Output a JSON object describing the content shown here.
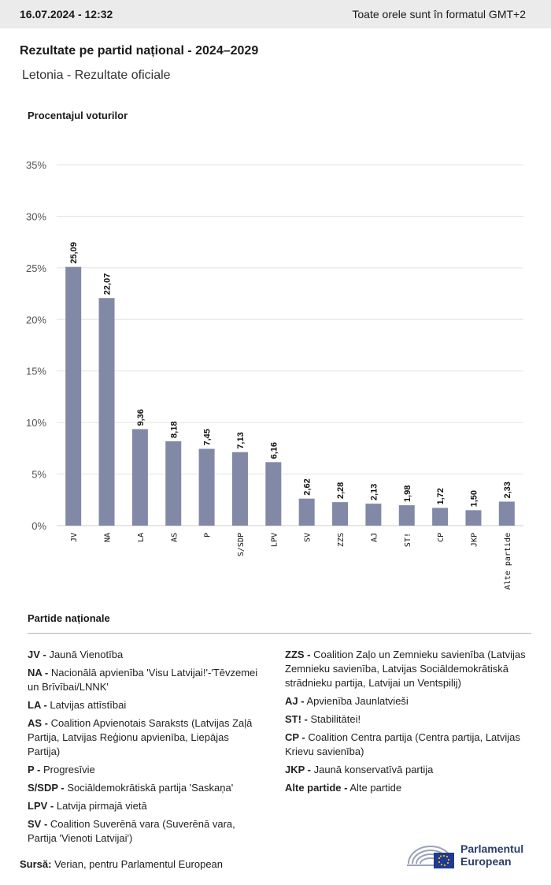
{
  "header": {
    "timestamp": "16.07.2024 - 12:32",
    "timezone_note": "Toate orele sunt în formatul GMT+2"
  },
  "title": "Rezultate pe partid național - 2024–2029",
  "subtitle": "Letonia - Rezultate oficiale",
  "colors": {
    "bar": "#8289a6",
    "grid": "#e3e3e3"
  },
  "chart_data": {
    "type": "bar",
    "ylabel": "Procentajul voturilor",
    "ylim": [
      0,
      35
    ],
    "yticks": [
      0,
      5,
      10,
      15,
      20,
      25,
      30,
      35
    ],
    "ytick_labels": [
      "0%",
      "5%",
      "10%",
      "15%",
      "20%",
      "25%",
      "30%",
      "35%"
    ],
    "categories": [
      "JV",
      "NA",
      "LA",
      "AS",
      "P",
      "S/SDP",
      "LPV",
      "SV",
      "ZZS",
      "AJ",
      "ST!",
      "CP",
      "JKP",
      "Alte partide"
    ],
    "values": [
      25.09,
      22.07,
      9.36,
      8.18,
      7.45,
      7.13,
      6.16,
      2.62,
      2.28,
      2.13,
      1.98,
      1.72,
      1.5,
      2.33
    ],
    "value_labels": [
      "25,09",
      "22,07",
      "9,36",
      "8,18",
      "7,45",
      "7,13",
      "6,16",
      "2,62",
      "2,28",
      "2,13",
      "1,98",
      "1,72",
      "1,50",
      "2,33"
    ],
    "grid": true
  },
  "legend": {
    "title": "Partide naționale",
    "left": [
      {
        "abbr": "JV -",
        "name": "Jaunā Vienotība"
      },
      {
        "abbr": "NA -",
        "name": "Nacionālā apvienība 'Visu Latvijai!'-'Tēvzemei un Brīvībai/LNNK'"
      },
      {
        "abbr": "LA -",
        "name": "Latvijas attīstībai"
      },
      {
        "abbr": "AS -",
        "name": "Coalition Apvienotais Saraksts (Latvijas Zaļā Partija, Latvijas Reģionu apvienība, Liepājas Partija)"
      },
      {
        "abbr": "P -",
        "name": "Progresīvie"
      },
      {
        "abbr": "S/SDP -",
        "name": "Sociāldemokrātiskā partija 'Saskaņa'"
      },
      {
        "abbr": "LPV -",
        "name": "Latvija pirmajā vietā"
      },
      {
        "abbr": "SV -",
        "name": "Coalition Suverēnā vara (Suverēnā vara, Partija 'Vienoti Latvijai')"
      }
    ],
    "right": [
      {
        "abbr": "ZZS -",
        "name": "Coalition Zaļo un Zemnieku savienība (Latvijas Zemnieku savienība, Latvijas Sociāldemokrātiskā strādnieku partija, Latvijai un Ventspilij)"
      },
      {
        "abbr": "AJ -",
        "name": "Apvienība Jaunlatvieši"
      },
      {
        "abbr": "ST! -",
        "name": "Stabilitātei!"
      },
      {
        "abbr": "CP -",
        "name": "Coalition Centra partija (Centra partija, Latvijas Krievu savienība)"
      },
      {
        "abbr": "JKP -",
        "name": "Jaunā konservatīvā partija"
      },
      {
        "abbr": "Alte partide -",
        "name": "Alte partide"
      }
    ]
  },
  "source": {
    "label": "Sursă:",
    "text": "Verian, pentru Parlamentul European"
  },
  "logo": {
    "line1": "Parlamentul",
    "line2": "European"
  }
}
